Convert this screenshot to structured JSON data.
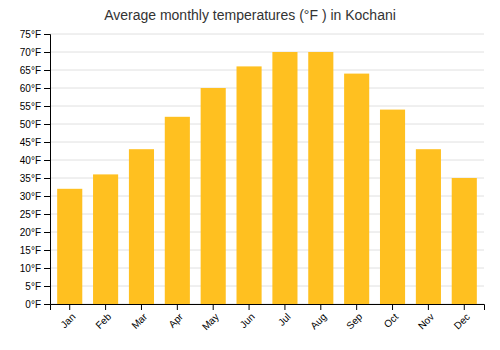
{
  "chart_data": {
    "type": "bar",
    "title": "Average monthly temperatures (°F ) in Kochani",
    "categories": [
      "Jan",
      "Feb",
      "Mar",
      "Apr",
      "May",
      "Jun",
      "Jul",
      "Aug",
      "Sep",
      "Oct",
      "Nov",
      "Dec"
    ],
    "values": [
      32,
      36,
      43,
      52,
      60,
      66,
      70,
      70,
      64,
      54,
      43,
      35
    ],
    "color": "#FFC020",
    "ylim": [
      0,
      75
    ],
    "yticks": [
      {
        "value": 0,
        "label": "0°F"
      },
      {
        "value": 5,
        "label": "5°F"
      },
      {
        "value": 10,
        "label": "10°F"
      },
      {
        "value": 15,
        "label": "15°F"
      },
      {
        "value": 20,
        "label": "20°F"
      },
      {
        "value": 25,
        "label": "25°F"
      },
      {
        "value": 30,
        "label": "30°F"
      },
      {
        "value": 35,
        "label": "35°F"
      },
      {
        "value": 40,
        "label": "40°F"
      },
      {
        "value": 45,
        "label": "45°F"
      },
      {
        "value": 50,
        "label": "50°F"
      },
      {
        "value": 55,
        "label": "55°F"
      },
      {
        "value": 60,
        "label": "60°F"
      },
      {
        "value": 65,
        "label": "65°F"
      },
      {
        "value": 70,
        "label": "70°F"
      },
      {
        "value": 75,
        "label": "75°F"
      }
    ],
    "grid": true
  }
}
